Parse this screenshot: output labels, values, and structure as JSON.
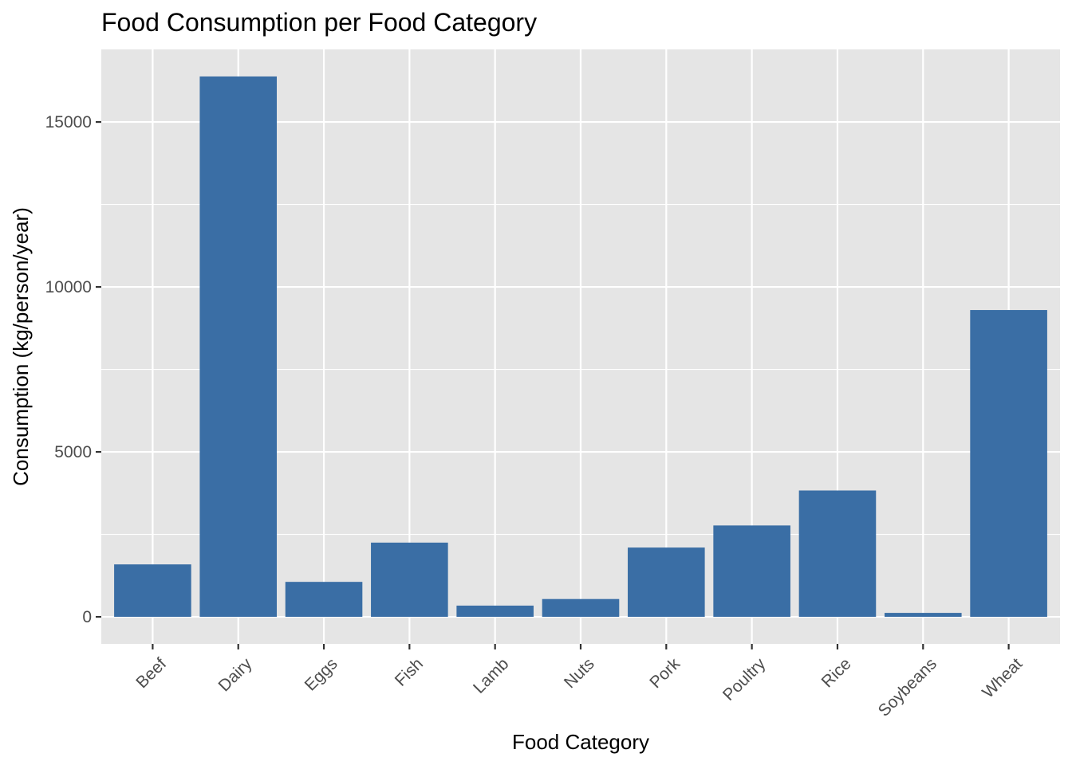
{
  "chart_data": {
    "type": "bar",
    "title": "Food Consumption per Food Category",
    "xlabel": "Food Category",
    "ylabel": "Consumption (kg/person/year)",
    "categories": [
      "Beef",
      "Dairy",
      "Eggs",
      "Fish",
      "Lamb",
      "Nuts",
      "Pork",
      "Poultry",
      "Rice",
      "Soybeans",
      "Wheat"
    ],
    "values": [
      1590,
      16380,
      1060,
      2250,
      340,
      540,
      2100,
      2770,
      3830,
      120,
      9300
    ],
    "ylim": [
      -820,
      17200
    ],
    "yticks": [
      0,
      5000,
      10000,
      15000
    ],
    "ytick_labels": [
      "0",
      "5000",
      "10000",
      "15000"
    ],
    "grid": true,
    "legend": "none",
    "bar_color": "#3a6ea5",
    "panel_color": "#e5e5e5"
  }
}
